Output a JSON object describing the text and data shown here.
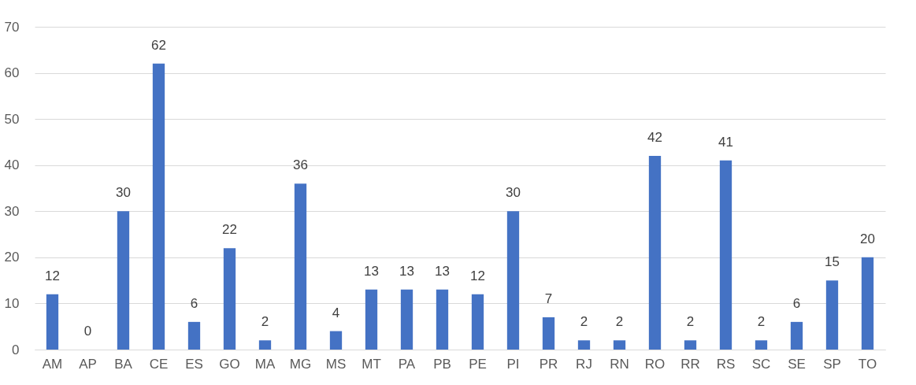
{
  "chart_data": {
    "type": "bar",
    "categories": [
      "AM",
      "AP",
      "BA",
      "CE",
      "ES",
      "GO",
      "MA",
      "MG",
      "MS",
      "MT",
      "PA",
      "PB",
      "PE",
      "PI",
      "PR",
      "RJ",
      "RN",
      "RO",
      "RR",
      "RS",
      "SC",
      "SE",
      "SP",
      "TO"
    ],
    "values": [
      12,
      0,
      30,
      62,
      6,
      22,
      2,
      36,
      4,
      13,
      13,
      13,
      12,
      30,
      7,
      2,
      2,
      42,
      2,
      41,
      2,
      6,
      15,
      20
    ],
    "color": "#4472c4",
    "ylim": [
      0,
      70
    ],
    "yticks": [
      0,
      10,
      20,
      30,
      40,
      50,
      60,
      70
    ],
    "grid": "y",
    "data_labels": true
  }
}
